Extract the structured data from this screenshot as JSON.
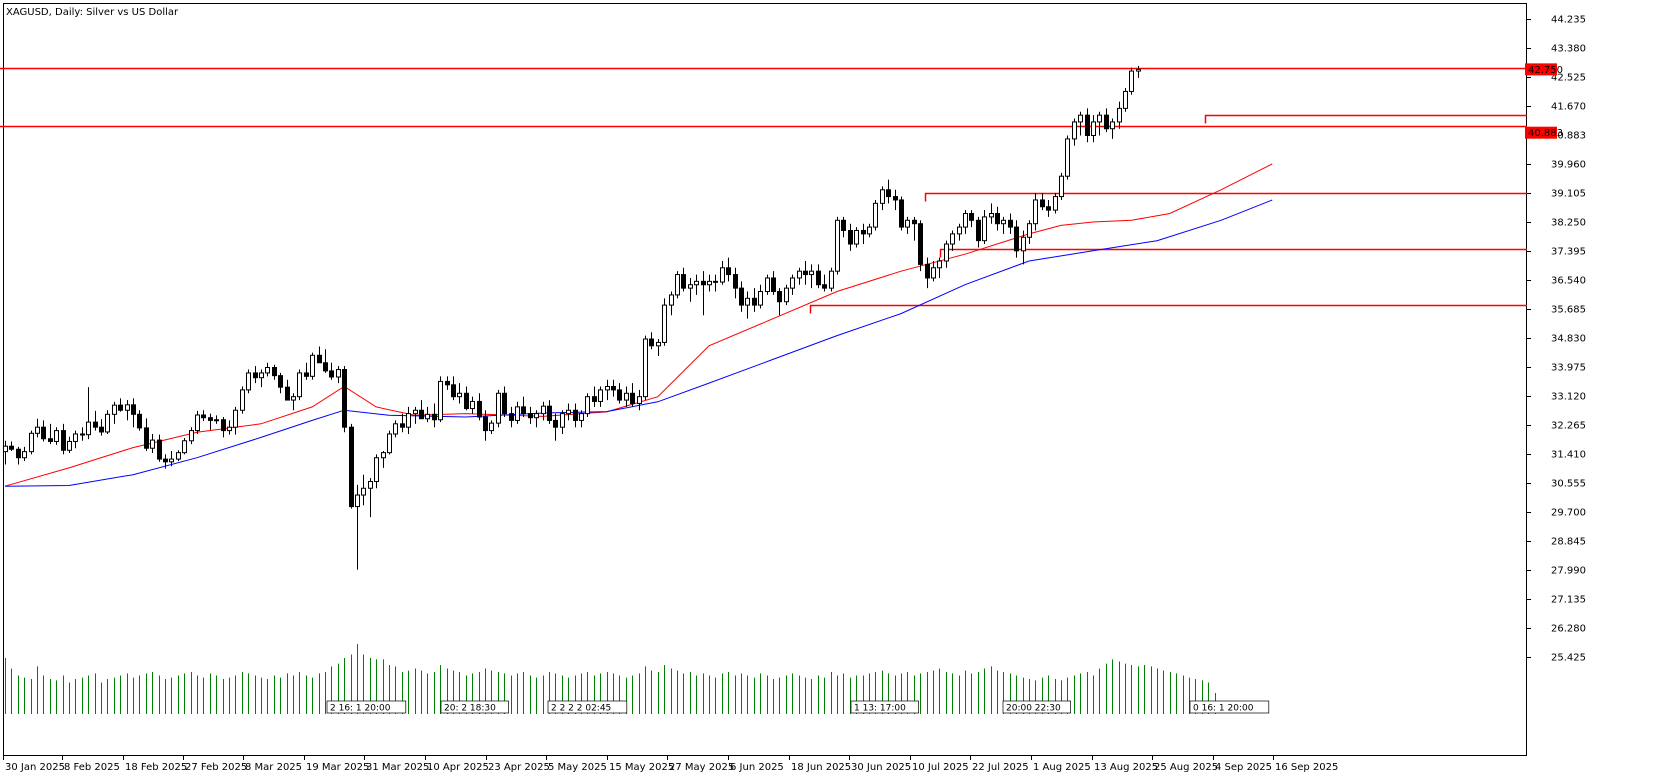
{
  "title": "XAGUSD, Daily:  Silver vs US Dollar",
  "colors": {
    "background": "#ffffff",
    "candle_outline": "#000000",
    "bull_body": "#ffffff",
    "bear_body": "#000000",
    "level_line": "#ff0000",
    "ma_fast": "#ff0000",
    "ma_slow": "#0000ff",
    "volume": "#008000",
    "price_tag": "#ff0000",
    "price_tag_text": "#ffffff"
  },
  "chart_data": {
    "type": "candlestick",
    "symbol": "XAGUSD",
    "timeframe": "Daily",
    "y_ticks": [
      "44.235",
      "43.380",
      "42.525",
      "41.670",
      "40.883",
      "39.960",
      "39.105",
      "38.250",
      "37.395",
      "36.540",
      "35.685",
      "34.830",
      "33.975",
      "33.120",
      "32.265",
      "31.410",
      "30.555",
      "29.700",
      "28.845",
      "27.990",
      "27.135",
      "26.280",
      "25.425"
    ],
    "price_tags": [
      {
        "value": "42.750"
      },
      {
        "value": "40.883"
      }
    ],
    "x_labels": [
      "30 Jan 2025",
      "8 Feb 2025",
      "18 Feb 2025",
      "27 Feb 2025",
      "8 Mar 2025",
      "19 Mar 2025",
      "31 Mar 2025",
      "10 Apr 2025",
      "23 Apr 2025",
      "5 May 2025",
      "15 May 2025",
      "27 May 2025",
      "6 Jun 2025",
      "18 Jun 2025",
      "30 Jun 2025",
      "10 Jul 2025",
      "22 Jul 2025",
      "1 Aug 2025",
      "13 Aug 2025",
      "25 Aug 2025",
      "4 Sep 2025",
      "16 Sep 2025"
    ],
    "horizontal_levels": [
      42.79,
      41.4,
      41.08,
      39.11,
      37.46,
      35.81
    ],
    "session_tags": [
      {
        "text": "2 16: 1 20:00"
      },
      {
        "text": "20: 2 18:30"
      },
      {
        "text": "2 2 2 2 02:45"
      },
      {
        "text": "1 13: 17:00"
      },
      {
        "text": "20:00 22:30"
      },
      {
        "text": "0 16: 1 20:00"
      }
    ],
    "candles": [
      [
        31.48,
        31.8,
        31.1,
        31.64
      ],
      [
        31.64,
        31.78,
        31.5,
        31.55
      ],
      [
        31.55,
        31.62,
        31.1,
        31.3
      ],
      [
        31.3,
        31.62,
        31.2,
        31.48
      ],
      [
        31.48,
        32.1,
        31.4,
        32.02
      ],
      [
        32.02,
        32.45,
        31.9,
        32.2
      ],
      [
        32.2,
        32.4,
        31.78,
        31.86
      ],
      [
        31.86,
        32.3,
        31.7,
        31.78
      ],
      [
        31.78,
        32.2,
        31.68,
        32.1
      ],
      [
        32.1,
        32.3,
        31.4,
        31.52
      ],
      [
        31.52,
        31.92,
        31.44,
        31.78
      ],
      [
        31.78,
        32.1,
        31.58,
        32.0
      ],
      [
        32.0,
        32.2,
        31.8,
        31.98
      ],
      [
        31.98,
        33.38,
        31.85,
        32.35
      ],
      [
        32.35,
        32.68,
        32.1,
        32.2
      ],
      [
        32.2,
        32.44,
        31.95,
        32.06
      ],
      [
        32.06,
        32.7,
        32.0,
        32.58
      ],
      [
        32.58,
        32.95,
        32.3,
        32.85
      ],
      [
        32.85,
        33.05,
        32.66,
        32.7
      ],
      [
        32.7,
        33.0,
        32.4,
        32.86
      ],
      [
        32.86,
        33.05,
        32.2,
        32.58
      ],
      [
        32.58,
        32.7,
        32.1,
        32.18
      ],
      [
        32.18,
        32.46,
        31.5,
        31.58
      ],
      [
        31.58,
        32.0,
        31.44,
        31.82
      ],
      [
        31.82,
        31.98,
        31.18,
        31.26
      ],
      [
        31.26,
        31.4,
        30.98,
        31.18
      ],
      [
        31.18,
        31.5,
        31.05,
        31.26
      ],
      [
        31.26,
        31.52,
        31.2,
        31.45
      ],
      [
        31.45,
        31.88,
        31.4,
        31.8
      ],
      [
        31.8,
        32.2,
        31.7,
        32.1
      ],
      [
        32.1,
        32.68,
        32.0,
        32.56
      ],
      [
        32.56,
        32.7,
        32.38,
        32.48
      ],
      [
        32.48,
        32.6,
        32.12,
        32.4
      ],
      [
        32.4,
        32.55,
        32.3,
        32.42
      ],
      [
        32.42,
        32.5,
        31.9,
        32.1
      ],
      [
        32.1,
        32.4,
        31.98,
        32.2
      ],
      [
        32.2,
        32.8,
        31.98,
        32.7
      ],
      [
        32.7,
        33.4,
        32.6,
        33.3
      ],
      [
        33.3,
        33.9,
        33.2,
        33.8
      ],
      [
        33.8,
        34.0,
        33.5,
        33.66
      ],
      [
        33.66,
        33.9,
        33.38,
        33.8
      ],
      [
        33.8,
        34.1,
        33.7,
        33.96
      ],
      [
        33.96,
        34.04,
        33.6,
        33.72
      ],
      [
        33.72,
        33.8,
        33.2,
        33.38
      ],
      [
        33.38,
        33.6,
        33.1,
        33.0
      ],
      [
        33.0,
        33.2,
        32.7,
        33.1
      ],
      [
        33.1,
        33.9,
        33.0,
        33.8
      ],
      [
        33.8,
        34.1,
        33.6,
        33.7
      ],
      [
        33.7,
        34.4,
        33.6,
        34.32
      ],
      [
        34.32,
        34.58,
        34.1,
        34.1
      ],
      [
        34.1,
        34.5,
        33.8,
        33.86
      ],
      [
        33.86,
        34.1,
        33.6,
        33.68
      ],
      [
        33.68,
        34.0,
        33.5,
        33.9
      ],
      [
        33.9,
        34.0,
        32.05,
        32.2
      ],
      [
        32.2,
        32.3,
        29.8,
        29.86
      ],
      [
        29.86,
        30.5,
        28.0,
        30.2
      ],
      [
        30.2,
        30.8,
        29.9,
        30.4
      ],
      [
        30.4,
        30.7,
        29.55,
        30.6
      ],
      [
        30.6,
        31.4,
        30.4,
        31.3
      ],
      [
        31.3,
        31.5,
        31.0,
        31.45
      ],
      [
        31.45,
        32.1,
        31.4,
        32.0
      ],
      [
        32.0,
        32.4,
        31.9,
        32.3
      ],
      [
        32.3,
        32.6,
        32.05,
        32.2
      ],
      [
        32.2,
        32.8,
        32.0,
        32.6
      ],
      [
        32.6,
        32.8,
        32.3,
        32.7
      ],
      [
        32.7,
        33.0,
        32.5,
        32.45
      ],
      [
        32.45,
        32.8,
        32.35,
        32.58
      ],
      [
        32.58,
        32.9,
        32.2,
        32.42
      ],
      [
        32.42,
        33.7,
        32.35,
        33.55
      ],
      [
        33.55,
        33.7,
        33.3,
        33.45
      ],
      [
        33.45,
        33.7,
        33.0,
        33.1
      ],
      [
        33.1,
        33.5,
        32.9,
        33.2
      ],
      [
        33.2,
        33.4,
        32.7,
        32.75
      ],
      [
        32.75,
        33.1,
        32.6,
        32.96
      ],
      [
        32.96,
        33.2,
        32.4,
        32.5
      ],
      [
        32.5,
        32.7,
        31.8,
        32.1
      ],
      [
        32.1,
        32.4,
        32.0,
        32.32
      ],
      [
        32.32,
        33.3,
        32.2,
        33.2
      ],
      [
        33.2,
        33.4,
        32.5,
        32.6
      ],
      [
        32.6,
        32.8,
        32.2,
        32.4
      ],
      [
        32.4,
        32.95,
        32.3,
        32.8
      ],
      [
        32.8,
        33.1,
        32.5,
        32.6
      ],
      [
        32.6,
        32.8,
        32.3,
        32.48
      ],
      [
        32.48,
        32.7,
        32.2,
        32.6
      ],
      [
        32.6,
        32.95,
        32.4,
        32.82
      ],
      [
        32.82,
        33.0,
        32.3,
        32.4
      ],
      [
        32.4,
        32.6,
        31.8,
        32.2
      ],
      [
        32.2,
        32.7,
        32.0,
        32.6
      ],
      [
        32.6,
        32.9,
        32.4,
        32.7
      ],
      [
        32.7,
        32.9,
        32.2,
        32.4
      ],
      [
        32.4,
        32.7,
        32.2,
        32.6
      ],
      [
        32.6,
        33.2,
        32.5,
        33.1
      ],
      [
        33.1,
        33.4,
        32.8,
        32.96
      ],
      [
        32.96,
        33.4,
        32.8,
        33.3
      ],
      [
        33.3,
        33.6,
        33.0,
        33.4
      ],
      [
        33.4,
        33.6,
        33.1,
        33.3
      ],
      [
        33.3,
        33.5,
        32.9,
        33.0
      ],
      [
        33.0,
        33.4,
        32.8,
        33.2
      ],
      [
        33.2,
        33.5,
        32.8,
        32.9
      ],
      [
        32.9,
        33.3,
        32.7,
        33.1
      ],
      [
        33.1,
        34.9,
        33.0,
        34.8
      ],
      [
        34.8,
        35.0,
        34.5,
        34.6
      ],
      [
        34.6,
        34.8,
        34.3,
        34.7
      ],
      [
        34.7,
        36.0,
        34.6,
        35.8
      ],
      [
        35.8,
        36.2,
        35.5,
        36.1
      ],
      [
        36.1,
        36.8,
        36.0,
        36.7
      ],
      [
        36.7,
        36.9,
        36.2,
        36.3
      ],
      [
        36.3,
        36.6,
        35.9,
        36.4
      ],
      [
        36.4,
        36.7,
        36.1,
        36.5
      ],
      [
        36.5,
        36.8,
        35.5,
        36.4
      ],
      [
        36.4,
        36.7,
        36.2,
        36.5
      ],
      [
        36.5,
        36.7,
        36.2,
        36.48
      ],
      [
        36.48,
        37.1,
        36.4,
        36.9
      ],
      [
        36.9,
        37.2,
        36.5,
        36.7
      ],
      [
        36.7,
        36.9,
        36.0,
        36.3
      ],
      [
        36.3,
        36.5,
        35.6,
        35.8
      ],
      [
        35.8,
        36.2,
        35.4,
        36.0
      ],
      [
        36.0,
        36.3,
        35.6,
        35.8
      ],
      [
        35.8,
        36.4,
        35.7,
        36.2
      ],
      [
        36.2,
        36.7,
        36.1,
        36.6
      ],
      [
        36.6,
        36.8,
        36.1,
        36.2
      ],
      [
        36.2,
        36.3,
        35.5,
        35.9
      ],
      [
        35.9,
        36.4,
        35.8,
        36.3
      ],
      [
        36.3,
        36.7,
        36.1,
        36.6
      ],
      [
        36.6,
        36.9,
        36.4,
        36.8
      ],
      [
        36.8,
        37.1,
        36.4,
        36.7
      ],
      [
        36.7,
        37.0,
        36.3,
        36.8
      ],
      [
        36.8,
        37.0,
        36.3,
        36.4
      ],
      [
        36.4,
        36.7,
        36.2,
        36.3
      ],
      [
        36.3,
        36.9,
        36.2,
        36.8
      ],
      [
        36.8,
        38.4,
        36.7,
        38.3
      ],
      [
        38.3,
        38.4,
        37.8,
        38.0
      ],
      [
        38.0,
        38.2,
        37.4,
        37.6
      ],
      [
        37.6,
        38.1,
        37.5,
        38.0
      ],
      [
        38.0,
        38.2,
        37.6,
        37.9
      ],
      [
        37.9,
        38.2,
        37.8,
        38.1
      ],
      [
        38.1,
        38.9,
        38.0,
        38.8
      ],
      [
        38.8,
        39.3,
        38.6,
        39.2
      ],
      [
        39.2,
        39.5,
        38.8,
        39.0
      ],
      [
        39.0,
        39.2,
        38.6,
        38.9
      ],
      [
        38.9,
        39.0,
        38.0,
        38.1
      ],
      [
        38.1,
        38.4,
        37.9,
        38.3
      ],
      [
        38.3,
        38.4,
        37.7,
        38.2
      ],
      [
        38.2,
        38.3,
        36.8,
        37.0
      ],
      [
        37.0,
        37.2,
        36.3,
        36.6
      ],
      [
        36.6,
        37.1,
        36.5,
        36.9
      ],
      [
        36.9,
        37.2,
        36.6,
        37.1
      ],
      [
        37.1,
        37.7,
        36.9,
        37.6
      ],
      [
        37.6,
        38.0,
        37.4,
        37.9
      ],
      [
        37.9,
        38.2,
        37.7,
        38.1
      ],
      [
        38.1,
        38.6,
        37.9,
        38.5
      ],
      [
        38.5,
        38.6,
        38.1,
        38.3
      ],
      [
        38.3,
        38.4,
        37.5,
        37.7
      ],
      [
        37.7,
        38.6,
        37.6,
        38.4
      ],
      [
        38.4,
        38.8,
        38.2,
        38.5
      ],
      [
        38.5,
        38.7,
        38.0,
        38.2
      ],
      [
        38.2,
        38.4,
        37.9,
        38.3
      ],
      [
        38.3,
        38.5,
        37.9,
        38.1
      ],
      [
        38.1,
        38.3,
        37.2,
        37.4
      ],
      [
        37.4,
        38.0,
        37.0,
        37.8
      ],
      [
        37.8,
        38.3,
        37.6,
        38.2
      ],
      [
        38.2,
        39.1,
        38.0,
        38.9
      ],
      [
        38.9,
        39.1,
        38.6,
        38.7
      ],
      [
        38.7,
        38.9,
        38.4,
        38.6
      ],
      [
        38.6,
        39.1,
        38.5,
        39.0
      ],
      [
        39.0,
        39.7,
        38.9,
        39.6
      ],
      [
        39.6,
        40.8,
        39.5,
        40.7
      ],
      [
        40.7,
        41.3,
        40.5,
        41.2
      ],
      [
        41.2,
        41.5,
        40.8,
        41.4
      ],
      [
        41.4,
        41.6,
        40.6,
        40.8
      ],
      [
        40.8,
        41.4,
        40.6,
        41.2
      ],
      [
        41.2,
        41.5,
        40.8,
        41.4
      ],
      [
        41.4,
        41.6,
        40.9,
        41.0
      ],
      [
        41.0,
        41.3,
        40.7,
        41.2
      ],
      [
        41.2,
        41.8,
        41.0,
        41.6
      ],
      [
        41.6,
        42.2,
        41.5,
        42.1
      ],
      [
        42.1,
        42.8,
        42.0,
        42.7
      ],
      [
        42.7,
        42.85,
        42.5,
        42.75
      ]
    ],
    "ma_fast_points": [
      [
        0,
        30.46
      ],
      [
        10,
        31.0
      ],
      [
        20,
        31.6
      ],
      [
        30,
        32.05
      ],
      [
        40,
        32.3
      ],
      [
        48,
        32.8
      ],
      [
        53,
        33.4
      ],
      [
        58,
        32.8
      ],
      [
        64,
        32.55
      ],
      [
        72,
        32.6
      ],
      [
        84,
        32.52
      ],
      [
        94,
        32.65
      ],
      [
        102,
        33.1
      ],
      [
        110,
        34.6
      ],
      [
        120,
        35.4
      ],
      [
        130,
        36.2
      ],
      [
        140,
        36.8
      ],
      [
        150,
        37.3
      ],
      [
        160,
        37.9
      ],
      [
        165,
        38.15
      ],
      [
        170,
        38.25
      ],
      [
        176,
        38.3
      ],
      [
        182,
        38.5
      ],
      [
        190,
        39.2
      ],
      [
        198,
        39.96
      ]
    ],
    "ma_slow_points": [
      [
        0,
        30.46
      ],
      [
        10,
        30.48
      ],
      [
        20,
        30.8
      ],
      [
        30,
        31.3
      ],
      [
        40,
        31.9
      ],
      [
        48,
        32.4
      ],
      [
        53,
        32.7
      ],
      [
        60,
        32.55
      ],
      [
        72,
        32.5
      ],
      [
        84,
        32.62
      ],
      [
        94,
        32.66
      ],
      [
        102,
        32.95
      ],
      [
        110,
        33.5
      ],
      [
        120,
        34.2
      ],
      [
        130,
        34.9
      ],
      [
        140,
        35.55
      ],
      [
        150,
        36.4
      ],
      [
        160,
        37.1
      ],
      [
        170,
        37.4
      ],
      [
        180,
        37.7
      ],
      [
        190,
        38.3
      ],
      [
        198,
        38.9
      ]
    ],
    "volume_levels": [
      0.8,
      0.65,
      0.55,
      0.52,
      0.5,
      0.68,
      0.55,
      0.5,
      0.48,
      0.55,
      0.45,
      0.5,
      0.52,
      0.55,
      0.58,
      0.45,
      0.5,
      0.52,
      0.55,
      0.58,
      0.52,
      0.55,
      0.58,
      0.6,
      0.55,
      0.5,
      0.52,
      0.55,
      0.58,
      0.6,
      0.55,
      0.52,
      0.58,
      0.55,
      0.5,
      0.52,
      0.55,
      0.6,
      0.58,
      0.55,
      0.52,
      0.5,
      0.55,
      0.52,
      0.58,
      0.55,
      0.6,
      0.55,
      0.52,
      0.58,
      0.6,
      0.68,
      0.72,
      0.8,
      0.85,
      1.0,
      0.85,
      0.8,
      0.78,
      0.78,
      0.7,
      0.68,
      0.6,
      0.62,
      0.65,
      0.62,
      0.58,
      0.6,
      0.7,
      0.65,
      0.62,
      0.6,
      0.55,
      0.58,
      0.6,
      0.65,
      0.62,
      0.6,
      0.58,
      0.55,
      0.58,
      0.6,
      0.55,
      0.52,
      0.55,
      0.6,
      0.58,
      0.55,
      0.52,
      0.55,
      0.58,
      0.6,
      0.55,
      0.58,
      0.6,
      0.58,
      0.55,
      0.52,
      0.55,
      0.58,
      0.68,
      0.62,
      0.6,
      0.7,
      0.65,
      0.62,
      0.58,
      0.6,
      0.55,
      0.58,
      0.55,
      0.52,
      0.58,
      0.6,
      0.55,
      0.58,
      0.55,
      0.52,
      0.58,
      0.55,
      0.5,
      0.52,
      0.55,
      0.58,
      0.55,
      0.52,
      0.5,
      0.55,
      0.52,
      0.6,
      0.55,
      0.58,
      0.52,
      0.55,
      0.55,
      0.58,
      0.6,
      0.62,
      0.58,
      0.55,
      0.58,
      0.6,
      0.55,
      0.58,
      0.6,
      0.62,
      0.65,
      0.6,
      0.58,
      0.55,
      0.62,
      0.58,
      0.6,
      0.65,
      0.68,
      0.62,
      0.6,
      0.58,
      0.55,
      0.52,
      0.5,
      0.48,
      0.52,
      0.55,
      0.5,
      0.48,
      0.52,
      0.55,
      0.58,
      0.6,
      0.55,
      0.65,
      0.72,
      0.78,
      0.75,
      0.72,
      0.7,
      0.68,
      0.7,
      0.68,
      0.65,
      0.62,
      0.6,
      0.58,
      0.55,
      0.52,
      0.5,
      0.48,
      0.45,
      0.3
    ]
  }
}
